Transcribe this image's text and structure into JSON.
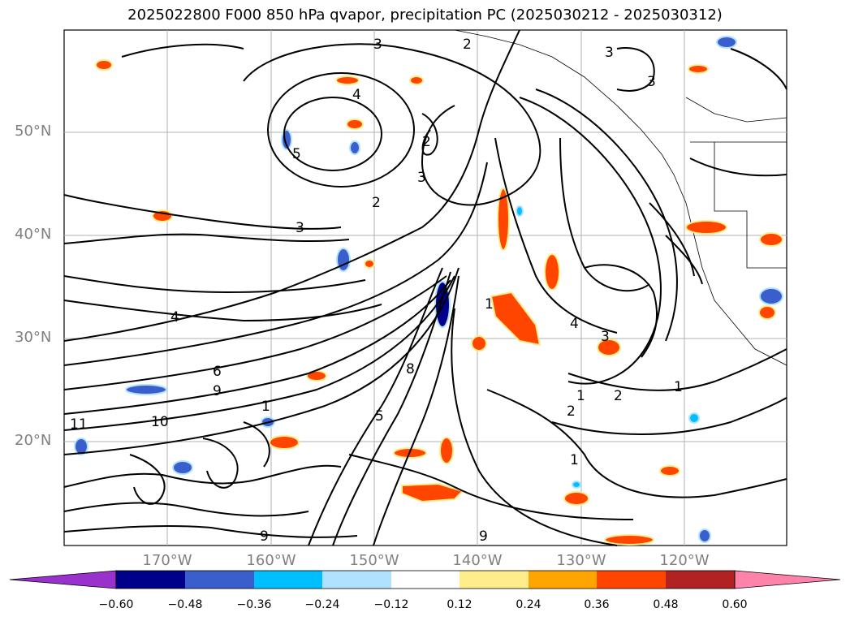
{
  "title": "2025022800 F000 850 hPa qvapor, precipitation PC (2025030212 - 2025030312)",
  "lat_labels": [
    "50°N",
    "40°N",
    "30°N",
    "20°N"
  ],
  "lon_labels": [
    "170°W",
    "160°W",
    "150°W",
    "140°W",
    "130°W",
    "120°W"
  ],
  "colorbar": {
    "colors": [
      "#9932cc",
      "#00008b",
      "#3a5fcd",
      "#00bfff",
      "#b0e2ff",
      "#ffffff",
      "#ffec8b",
      "#ffa500",
      "#ff4500",
      "#b22222",
      "#ff82ab"
    ],
    "ticks": [
      "−0.60",
      "−0.48",
      "−0.36",
      "−0.24",
      "−0.12",
      "0.12",
      "0.24",
      "0.36",
      "0.48",
      "0.60"
    ]
  },
  "contour_labels": [
    "3",
    "2",
    "3",
    "3",
    "4",
    "5",
    "2",
    "3",
    "2",
    "3",
    "4",
    "6",
    "9",
    "10",
    "11",
    "1",
    "5",
    "1",
    "2",
    "1",
    "3",
    "4",
    "2",
    "1",
    "1",
    "8",
    "9",
    "9"
  ]
}
